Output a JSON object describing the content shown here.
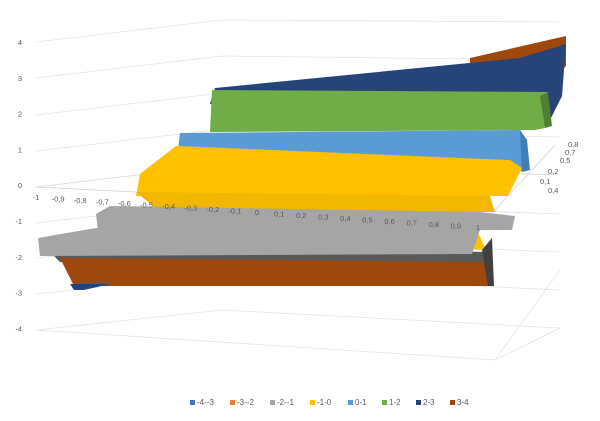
{
  "chart_data": {
    "type": "surface",
    "title": "",
    "xlabel": "",
    "ylabel": "",
    "zlabel": "",
    "x_ticks": [
      "-1",
      "-0,9",
      "-0,8",
      "-0,7",
      "-0,6",
      "-0,5",
      "-0,4",
      "-0,3",
      "-0,2",
      "-0,1",
      "0",
      "0,1",
      "0,2",
      "0,3",
      "0,4",
      "0,5",
      "0,6",
      "0,7",
      "0,8",
      "0,9",
      "1"
    ],
    "y_ticks": [
      "0,1",
      "0,2",
      "0,4",
      "0,5",
      "0,7",
      "0,8"
    ],
    "z_ticks": [
      "4",
      "3",
      "2",
      "1",
      "0",
      "-1",
      "-2",
      "-3",
      "-4"
    ],
    "zlim": [
      -4,
      4
    ],
    "grid": true,
    "legend_position": "bottom",
    "series": [
      {
        "name": "-4--3",
        "color": "#4472C4"
      },
      {
        "name": "-3--2",
        "color": "#ED7D31"
      },
      {
        "name": "-2--1",
        "color": "#A5A5A5"
      },
      {
        "name": "-1-0",
        "color": "#FFC000"
      },
      {
        "name": "0-1",
        "color": "#5B9BD5"
      },
      {
        "name": "1-2",
        "color": "#70AD47"
      },
      {
        "name": "2-3",
        "color": "#264478"
      },
      {
        "name": "3-4",
        "color": "#9E480E"
      }
    ]
  }
}
